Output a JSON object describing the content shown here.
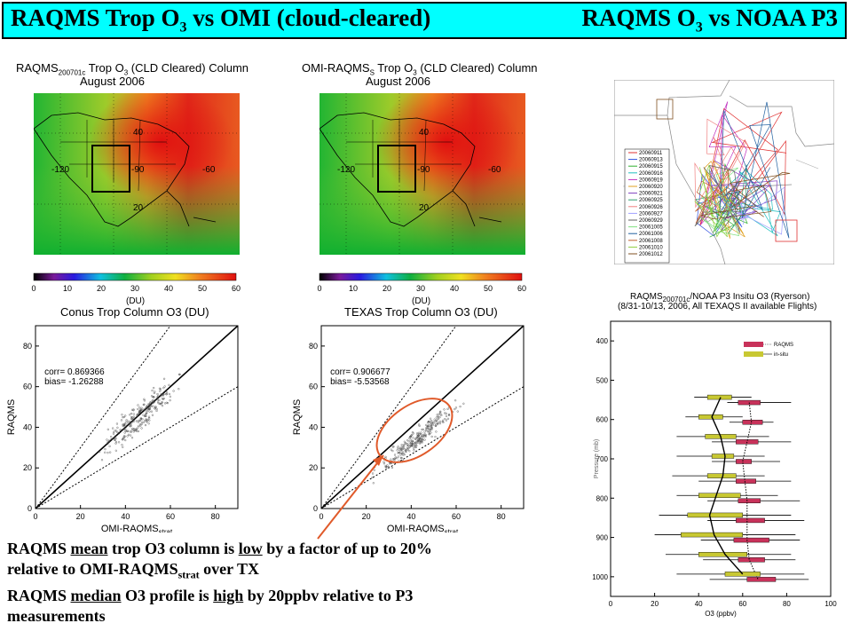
{
  "banner": {
    "left_pre": "RAQMS Trop O",
    "left_sub": "3",
    "left_post": " vs OMI (cloud-cleared)",
    "right_pre": "RAQMS O",
    "right_sub": "3",
    "right_post": " vs NOAA P3"
  },
  "maps": [
    {
      "title_pre": "RAQMS",
      "title_sub": "200701c",
      "title_post": " Trop O",
      "title_sub2": "3",
      "title_end": " (CLD Cleared) Column",
      "subtitle": "August 2006",
      "lon_labels": [
        "-120",
        "-90",
        "-60"
      ],
      "lat_labels": [
        "40",
        "20"
      ]
    },
    {
      "title_pre": "OMI-RAQMS",
      "title_sub": "S",
      "title_post": " Trop O",
      "title_sub2": "3",
      "title_end": " (CLD Cleared) Column",
      "subtitle": "August 2006",
      "lon_labels": [
        "-120",
        "-90",
        "-60"
      ],
      "lat_labels": [
        "40",
        "20"
      ]
    }
  ],
  "colorbar": {
    "ticks": [
      "0",
      "10",
      "20",
      "30",
      "40",
      "50",
      "60"
    ],
    "unit": "(DU)"
  },
  "chart_data": [
    {
      "type": "scatter",
      "title": "Conus Trop Column O3 (DU)",
      "xlabel_pre": "OMI-RAQMS",
      "xlabel_sub": "strat",
      "ylabel": "RAQMS",
      "xlim": [
        0,
        90
      ],
      "ylim": [
        0,
        90
      ],
      "xticks": [
        "0",
        "20",
        "40",
        "60",
        "80"
      ],
      "yticks": [
        "0",
        "20",
        "40",
        "60",
        "80"
      ],
      "stats": [
        "corr= 0.869366",
        "bias= -1.26288"
      ],
      "cloud": {
        "center": [
          47,
          46
        ],
        "spread": [
          7,
          8
        ]
      }
    },
    {
      "type": "scatter",
      "title": "TEXAS Trop Column O3 (DU)",
      "xlabel_pre": "OMI-RAQMS",
      "xlabel_sub": "strat",
      "ylabel": "RAQMS",
      "xlim": [
        0,
        90
      ],
      "ylim": [
        0,
        90
      ],
      "xticks": [
        "0",
        "20",
        "40",
        "60",
        "80"
      ],
      "yticks": [
        "0",
        "20",
        "40",
        "60",
        "80"
      ],
      "stats": [
        "corr= 0.906677",
        "bias= -5.53568"
      ],
      "cloud": {
        "center": [
          42,
          34
        ],
        "spread": [
          8,
          6
        ]
      }
    },
    {
      "type": "line",
      "title_pre": "RAQMS",
      "title_sub": "200701c",
      "title_post": "/NOAA P3 Insitu O3 (Ryerson)",
      "subtitle": "(8/31-10/13, 2006, All TEXAQS II available Flights)",
      "xlabel": "O3 (ppbv)",
      "ylabel": "Pressure (mb)",
      "xlim": [
        0,
        100
      ],
      "ylim": [
        1050,
        350
      ],
      "xticks": [
        "0",
        "20",
        "40",
        "60",
        "80",
        "100"
      ],
      "yticks": [
        "400",
        "500",
        "600",
        "700",
        "800",
        "900",
        "1000"
      ],
      "legend": [
        "RAQMS",
        "in-situ"
      ],
      "series": [
        {
          "name": "RAQMS",
          "color": "#c8325a",
          "pressure": [
            550,
            600,
            650,
            700,
            750,
            800,
            850,
            900,
            950,
            1000
          ],
          "median": [
            63,
            64,
            62,
            60,
            61,
            62,
            62,
            62,
            63,
            67
          ],
          "q1": [
            58,
            60,
            57,
            57,
            57,
            58,
            57,
            56,
            58,
            62
          ],
          "q3": [
            68,
            69,
            67,
            64,
            66,
            68,
            70,
            72,
            70,
            75
          ],
          "min": [
            53,
            54,
            46,
            46,
            40,
            44,
            44,
            41,
            42,
            45
          ],
          "max": [
            82,
            74,
            82,
            77,
            82,
            86,
            88,
            86,
            84,
            90
          ]
        },
        {
          "name": "in-situ",
          "color": "#c8c832",
          "pressure": [
            550,
            600,
            650,
            700,
            750,
            800,
            850,
            900,
            950,
            1000
          ],
          "median": [
            50,
            46,
            50,
            52,
            51,
            48,
            45,
            47,
            52,
            60
          ],
          "q1": [
            44,
            40,
            43,
            46,
            44,
            40,
            35,
            32,
            40,
            52
          ],
          "q3": [
            55,
            51,
            57,
            56,
            57,
            59,
            60,
            60,
            62,
            68
          ],
          "min": [
            38,
            34,
            30,
            30,
            28,
            30,
            22,
            20,
            25,
            30
          ],
          "max": [
            64,
            60,
            72,
            70,
            70,
            76,
            82,
            84,
            82,
            88
          ]
        }
      ]
    }
  ],
  "notes": {
    "l1_a": "RAQMS ",
    "l1_u1": "mean",
    "l1_b": " trop O3 column is ",
    "l1_u2": "low",
    "l1_c": " by a factor of up to 20%",
    "l2_a": "relative to OMI-RAQMS",
    "l2_sub": "strat",
    "l2_b": " over TX",
    "l3_a": "RAQMS ",
    "l3_u1": "median",
    "l3_b": " O3 profile is ",
    "l3_u2": "high",
    "l3_c": " by 20ppbv relative to P3",
    "l4": "measurements"
  },
  "flight_legend": [
    "20060911",
    "20060913",
    "20060915",
    "20060916",
    "20060919",
    "20060920",
    "20060921",
    "20060925",
    "20060926",
    "20060927",
    "20060929",
    "20061005",
    "20061006",
    "20061008",
    "20061010",
    "20061012"
  ],
  "flight_colors": [
    "#e03030",
    "#3050e0",
    "#30b030",
    "#20c0c0",
    "#c030c0",
    "#e0a020",
    "#8040c0",
    "#30a070",
    "#f08080",
    "#a0a0ff",
    "#606060",
    "#80e080",
    "#2060a0",
    "#c06030",
    "#90d040",
    "#805020"
  ],
  "colors": {
    "banner": "#00ffff",
    "annotation": "#e05a2a"
  }
}
